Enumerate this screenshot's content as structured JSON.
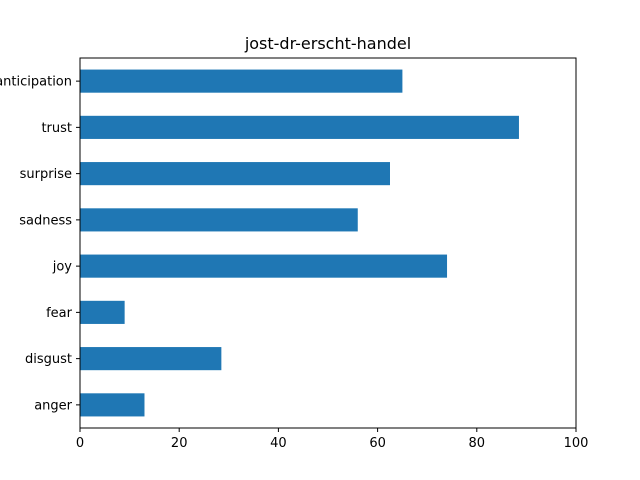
{
  "chart_data": {
    "type": "bar",
    "orientation": "horizontal",
    "title": "jost-dr-erscht-handel",
    "xlabel": "",
    "ylabel": "",
    "categories": [
      "anger",
      "disgust",
      "fear",
      "joy",
      "sadness",
      "surprise",
      "trust",
      "anticipation"
    ],
    "values": [
      13,
      28.5,
      9,
      74,
      56,
      62.5,
      88.5,
      65
    ],
    "xlim": [
      0,
      100
    ],
    "xticks": [
      0,
      20,
      40,
      60,
      80,
      100
    ],
    "grid": false,
    "bar_color": "#1f77b4"
  }
}
